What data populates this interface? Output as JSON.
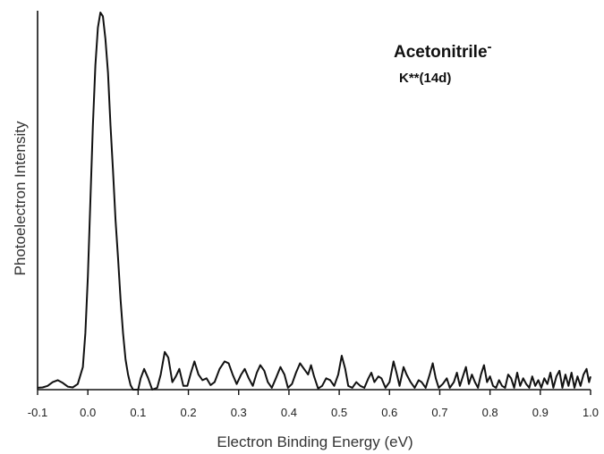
{
  "chart_data": {
    "type": "line",
    "title": "",
    "xlabel": "Electron Binding Energy (eV)",
    "ylabel": "Photoelectron Intensity",
    "xlim": [
      -0.1,
      1.0
    ],
    "ylim": [
      0,
      1
    ],
    "x_ticks": [
      -0.1,
      0.0,
      0.1,
      0.2,
      0.3,
      0.4,
      0.5,
      0.6,
      0.7,
      0.8,
      0.9,
      1.0
    ],
    "x_tick_labels": [
      "-0.1",
      "0.0",
      "0.1",
      "0.2",
      "0.3",
      "0.4",
      "0.5",
      "0.6",
      "0.7",
      "0.8",
      "0.9",
      "1.0"
    ],
    "y_ticks_shown": false,
    "grid": false,
    "annotations": [
      {
        "text": "Acetonitrile",
        "superscript": "-"
      },
      {
        "text": "K**(14d)"
      }
    ],
    "series": [
      {
        "color": "#111111",
        "points": [
          [
            -0.1,
            0.005
          ],
          [
            -0.09,
            0.006
          ],
          [
            -0.08,
            0.01
          ],
          [
            -0.07,
            0.02
          ],
          [
            -0.06,
            0.025
          ],
          [
            -0.05,
            0.018
          ],
          [
            -0.04,
            0.008
          ],
          [
            -0.03,
            0.006
          ],
          [
            -0.02,
            0.015
          ],
          [
            -0.01,
            0.06
          ],
          [
            -0.005,
            0.15
          ],
          [
            0.0,
            0.3
          ],
          [
            0.005,
            0.5
          ],
          [
            0.01,
            0.7
          ],
          [
            0.015,
            0.86
          ],
          [
            0.02,
            0.96
          ],
          [
            0.025,
            1.0
          ],
          [
            0.03,
            0.99
          ],
          [
            0.035,
            0.93
          ],
          [
            0.04,
            0.84
          ],
          [
            0.045,
            0.7
          ],
          [
            0.05,
            0.58
          ],
          [
            0.055,
            0.45
          ],
          [
            0.06,
            0.35
          ],
          [
            0.065,
            0.24
          ],
          [
            0.07,
            0.15
          ],
          [
            0.075,
            0.08
          ],
          [
            0.08,
            0.04
          ],
          [
            0.085,
            0.012
          ],
          [
            0.09,
            0.0
          ],
          [
            0.1,
            0.0
          ],
          [
            0.105,
            0.03
          ],
          [
            0.112,
            0.055
          ],
          [
            0.12,
            0.03
          ],
          [
            0.128,
            0.0
          ],
          [
            0.138,
            0.005
          ],
          [
            0.145,
            0.04
          ],
          [
            0.153,
            0.1
          ],
          [
            0.16,
            0.085
          ],
          [
            0.168,
            0.02
          ],
          [
            0.175,
            0.035
          ],
          [
            0.182,
            0.055
          ],
          [
            0.19,
            0.01
          ],
          [
            0.198,
            0.01
          ],
          [
            0.205,
            0.045
          ],
          [
            0.212,
            0.075
          ],
          [
            0.22,
            0.04
          ],
          [
            0.228,
            0.025
          ],
          [
            0.236,
            0.03
          ],
          [
            0.244,
            0.012
          ],
          [
            0.252,
            0.02
          ],
          [
            0.262,
            0.055
          ],
          [
            0.272,
            0.075
          ],
          [
            0.28,
            0.07
          ],
          [
            0.288,
            0.04
          ],
          [
            0.296,
            0.015
          ],
          [
            0.305,
            0.04
          ],
          [
            0.312,
            0.055
          ],
          [
            0.32,
            0.03
          ],
          [
            0.328,
            0.01
          ],
          [
            0.336,
            0.045
          ],
          [
            0.343,
            0.065
          ],
          [
            0.351,
            0.05
          ],
          [
            0.358,
            0.02
          ],
          [
            0.366,
            0.005
          ],
          [
            0.374,
            0.03
          ],
          [
            0.383,
            0.06
          ],
          [
            0.391,
            0.04
          ],
          [
            0.398,
            0.005
          ],
          [
            0.406,
            0.015
          ],
          [
            0.414,
            0.045
          ],
          [
            0.422,
            0.07
          ],
          [
            0.43,
            0.055
          ],
          [
            0.438,
            0.04
          ],
          [
            0.444,
            0.065
          ],
          [
            0.45,
            0.035
          ],
          [
            0.458,
            0.003
          ],
          [
            0.466,
            0.01
          ],
          [
            0.474,
            0.03
          ],
          [
            0.482,
            0.025
          ],
          [
            0.49,
            0.01
          ],
          [
            0.498,
            0.04
          ],
          [
            0.505,
            0.09
          ],
          [
            0.512,
            0.055
          ],
          [
            0.518,
            0.01
          ],
          [
            0.526,
            0.005
          ],
          [
            0.534,
            0.02
          ],
          [
            0.542,
            0.01
          ],
          [
            0.55,
            0.005
          ],
          [
            0.558,
            0.03
          ],
          [
            0.564,
            0.045
          ],
          [
            0.57,
            0.02
          ],
          [
            0.578,
            0.035
          ],
          [
            0.584,
            0.03
          ],
          [
            0.592,
            0.005
          ],
          [
            0.6,
            0.02
          ],
          [
            0.608,
            0.075
          ],
          [
            0.614,
            0.045
          ],
          [
            0.62,
            0.01
          ],
          [
            0.628,
            0.06
          ],
          [
            0.634,
            0.04
          ],
          [
            0.642,
            0.02
          ],
          [
            0.65,
            0.005
          ],
          [
            0.658,
            0.025
          ],
          [
            0.664,
            0.02
          ],
          [
            0.672,
            0.005
          ],
          [
            0.68,
            0.04
          ],
          [
            0.686,
            0.07
          ],
          [
            0.692,
            0.03
          ],
          [
            0.698,
            0.005
          ],
          [
            0.706,
            0.015
          ],
          [
            0.714,
            0.03
          ],
          [
            0.72,
            0.005
          ],
          [
            0.728,
            0.02
          ],
          [
            0.734,
            0.045
          ],
          [
            0.74,
            0.01
          ],
          [
            0.746,
            0.035
          ],
          [
            0.752,
            0.06
          ],
          [
            0.758,
            0.015
          ],
          [
            0.764,
            0.04
          ],
          [
            0.77,
            0.02
          ],
          [
            0.776,
            0.005
          ],
          [
            0.782,
            0.04
          ],
          [
            0.788,
            0.065
          ],
          [
            0.794,
            0.02
          ],
          [
            0.8,
            0.035
          ],
          [
            0.806,
            0.01
          ],
          [
            0.812,
            0.005
          ],
          [
            0.818,
            0.025
          ],
          [
            0.824,
            0.01
          ],
          [
            0.83,
            0.005
          ],
          [
            0.836,
            0.04
          ],
          [
            0.842,
            0.03
          ],
          [
            0.848,
            0.005
          ],
          [
            0.854,
            0.045
          ],
          [
            0.86,
            0.01
          ],
          [
            0.866,
            0.03
          ],
          [
            0.872,
            0.015
          ],
          [
            0.878,
            0.005
          ],
          [
            0.884,
            0.035
          ],
          [
            0.89,
            0.01
          ],
          [
            0.896,
            0.025
          ],
          [
            0.902,
            0.005
          ],
          [
            0.908,
            0.03
          ],
          [
            0.914,
            0.015
          ],
          [
            0.92,
            0.045
          ],
          [
            0.926,
            0.005
          ],
          [
            0.932,
            0.035
          ],
          [
            0.938,
            0.05
          ],
          [
            0.944,
            0.005
          ],
          [
            0.95,
            0.04
          ],
          [
            0.956,
            0.01
          ],
          [
            0.962,
            0.045
          ],
          [
            0.968,
            0.005
          ],
          [
            0.974,
            0.035
          ],
          [
            0.98,
            0.01
          ],
          [
            0.986,
            0.04
          ],
          [
            0.992,
            0.055
          ],
          [
            0.997,
            0.02
          ],
          [
            1.0,
            0.035
          ]
        ]
      }
    ]
  }
}
